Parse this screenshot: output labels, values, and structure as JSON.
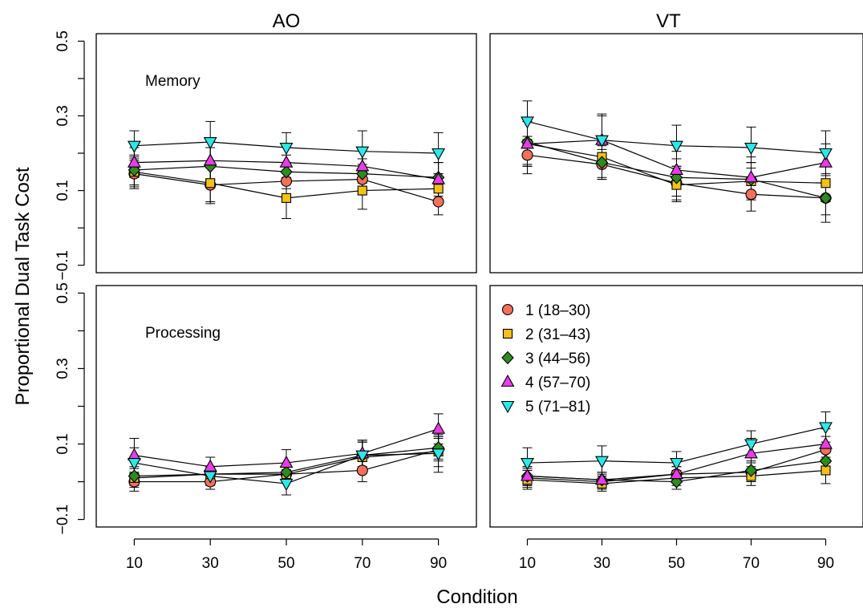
{
  "chart_data": {
    "type": "scatter",
    "ylabel": "Proportional Dual Task Cost",
    "xlabel": "Condition",
    "x": [
      10,
      30,
      50,
      70,
      90
    ],
    "xticks": [
      "10",
      "30",
      "50",
      "70",
      "90"
    ],
    "xlim": [
      0,
      100
    ],
    "ylim": [
      -0.12,
      0.52
    ],
    "yticks": [
      {
        "value": 0.5,
        "label": "0.5"
      },
      {
        "value": 0.3,
        "label": "0.3"
      },
      {
        "value": 0.1,
        "label": "0.1"
      },
      {
        "value": -0.1,
        "label": "−0.1"
      }
    ],
    "columns": [
      "AO",
      "VT"
    ],
    "rows": [
      "Memory",
      "Processing"
    ],
    "legend": {
      "placement": "top-left of lower-right panel",
      "entries": [
        {
          "label": "1 (18–30)",
          "color": "#F4705A",
          "shape": "circle"
        },
        {
          "label": "2 (31–43)",
          "color": "#F2C21A",
          "shape": "square"
        },
        {
          "label": "3 (44–56)",
          "color": "#2E8B1E",
          "shape": "diamond"
        },
        {
          "label": "4 (57–70)",
          "color": "#E83CE8",
          "shape": "triangle-up"
        },
        {
          "label": "5 (71–81)",
          "color": "#2CE8E8",
          "shape": "triangle-down"
        }
      ]
    },
    "panels": [
      {
        "column": "AO",
        "row": "Memory",
        "label": "Memory",
        "series": [
          {
            "group": "1 (18–30)",
            "values": [
              0.145,
              0.115,
              0.125,
              0.13,
              0.07
            ],
            "err": [
              0.04,
              0.05,
              0.04,
              0.04,
              0.035
            ]
          },
          {
            "group": "2 (31–43)",
            "values": [
              0.15,
              0.12,
              0.08,
              0.1,
              0.105
            ],
            "err": [
              0.04,
              0.05,
              0.055,
              0.05,
              0.04
            ]
          },
          {
            "group": "3 (44–56)",
            "values": [
              0.155,
              0.165,
              0.15,
              0.145,
              0.135
            ],
            "err": [
              0.04,
              0.05,
              0.045,
              0.04,
              0.04
            ]
          },
          {
            "group": "4 (57–70)",
            "values": [
              0.175,
              0.18,
              0.175,
              0.165,
              0.13
            ],
            "err": [
              0.04,
              0.05,
              0.045,
              0.045,
              0.045
            ]
          },
          {
            "group": "5 (71–81)",
            "values": [
              0.22,
              0.23,
              0.215,
              0.205,
              0.2
            ],
            "err": [
              0.04,
              0.055,
              0.04,
              0.055,
              0.055
            ]
          }
        ]
      },
      {
        "column": "VT",
        "row": "Memory",
        "label": "",
        "series": [
          {
            "group": "1 (18–30)",
            "values": [
              0.195,
              0.17,
              0.12,
              0.09,
              0.08
            ],
            "err": [
              0.05,
              0.04,
              0.045,
              0.045,
              0.045
            ]
          },
          {
            "group": "2 (31–43)",
            "values": [
              0.225,
              0.19,
              0.115,
              0.125,
              0.12
            ],
            "err": [
              0.06,
              0.055,
              0.045,
              0.05,
              0.05
            ]
          },
          {
            "group": "3 (44–56)",
            "values": [
              0.23,
              0.175,
              0.135,
              0.13,
              0.08
            ],
            "err": [
              0.06,
              0.045,
              0.05,
              0.045,
              0.065
            ]
          },
          {
            "group": "4 (57–70)",
            "values": [
              0.225,
              0.235,
              0.155,
              0.135,
              0.175
            ],
            "err": [
              0.06,
              0.065,
              0.05,
              0.055,
              0.05
            ]
          },
          {
            "group": "5 (71–81)",
            "values": [
              0.285,
              0.235,
              0.22,
              0.215,
              0.2
            ],
            "err": [
              0.055,
              0.07,
              0.055,
              0.055,
              0.06
            ]
          }
        ]
      },
      {
        "column": "AO",
        "row": "Processing",
        "label": "Processing",
        "series": [
          {
            "group": "1 (18–30)",
            "values": [
              0.0,
              0.0,
              0.02,
              0.03,
              0.085
            ],
            "err": [
              0.025,
              0.02,
              0.02,
              0.03,
              0.03
            ]
          },
          {
            "group": "2 (31–43)",
            "values": [
              0.01,
              0.02,
              0.02,
              0.065,
              0.08
            ],
            "err": [
              0.025,
              0.02,
              0.02,
              0.04,
              0.04
            ]
          },
          {
            "group": "3 (44–56)",
            "values": [
              0.015,
              0.02,
              0.025,
              0.07,
              0.09
            ],
            "err": [
              0.025,
              0.02,
              0.02,
              0.04,
              0.03
            ]
          },
          {
            "group": "4 (57–70)",
            "values": [
              0.07,
              0.04,
              0.05,
              0.075,
              0.14
            ],
            "err": [
              0.045,
              0.025,
              0.035,
              0.035,
              0.04
            ]
          },
          {
            "group": "5 (71–81)",
            "values": [
              0.05,
              0.015,
              -0.005,
              0.07,
              0.075
            ],
            "err": [
              0.04,
              0.025,
              0.03,
              0.035,
              0.05
            ]
          }
        ]
      },
      {
        "column": "VT",
        "row": "Processing",
        "label": "",
        "series": [
          {
            "group": "1 (18–30)",
            "values": [
              0.01,
              0.0,
              0.02,
              0.025,
              0.085
            ],
            "err": [
              0.025,
              0.02,
              0.02,
              0.025,
              0.035
            ]
          },
          {
            "group": "2 (31–43)",
            "values": [
              0.005,
              -0.005,
              0.01,
              0.015,
              0.03
            ],
            "err": [
              0.025,
              0.02,
              0.02,
              0.025,
              0.035
            ]
          },
          {
            "group": "3 (44–56)",
            "values": [
              0.015,
              0.005,
              0.0,
              0.03,
              0.055
            ],
            "err": [
              0.025,
              0.02,
              0.02,
              0.025,
              0.035
            ]
          },
          {
            "group": "4 (57–70)",
            "values": [
              0.015,
              0.005,
              0.02,
              0.075,
              0.1
            ],
            "err": [
              0.025,
              0.02,
              0.02,
              0.04,
              0.04
            ]
          },
          {
            "group": "5 (71–81)",
            "values": [
              0.05,
              0.055,
              0.05,
              0.1,
              0.145
            ],
            "err": [
              0.04,
              0.04,
              0.03,
              0.035,
              0.04
            ]
          }
        ]
      }
    ]
  }
}
